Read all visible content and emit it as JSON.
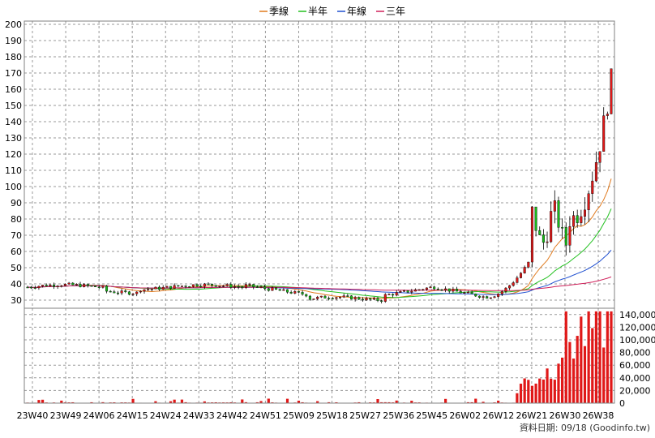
{
  "chart_data": {
    "type": "candlestick",
    "legend": {
      "placement": "top-center",
      "entries": [
        {
          "name": "季線",
          "color": "#e07a1e"
        },
        {
          "name": "半年",
          "color": "#22c01f"
        },
        {
          "name": "年線",
          "color": "#2050d0"
        },
        {
          "name": "三年",
          "color": "#d0205a"
        }
      ]
    },
    "price_axis": {
      "ylim": [
        25,
        202
      ],
      "ticks": [
        30,
        40,
        50,
        60,
        70,
        80,
        90,
        100,
        110,
        120,
        130,
        140,
        150,
        160,
        170,
        180,
        190,
        200
      ],
      "position": "left"
    },
    "volume_axis": {
      "ylim": [
        0,
        150000
      ],
      "ticks": [
        "0",
        "20,000",
        "40,000",
        "60,000",
        "80,000",
        "100,000",
        "120,000",
        "140,000"
      ],
      "tick_values": [
        0,
        20000,
        40000,
        60000,
        80000,
        100000,
        120000,
        140000
      ],
      "position": "right"
    },
    "x_ticks": [
      "23W40",
      "23W49",
      "24W06",
      "24W15",
      "24W24",
      "24W33",
      "24W42",
      "24W51",
      "25W09",
      "25W18",
      "25W27",
      "25W36",
      "25W45",
      "26W02",
      "26W12",
      "26W21",
      "26W30",
      "26W38"
    ],
    "grid": true,
    "colors": {
      "up": "#e01818",
      "down": "#18b818",
      "volume": "#e01818",
      "wick": "#000000"
    },
    "footer": "資料日期: 09/18  (Goodinfo.tw)"
  }
}
